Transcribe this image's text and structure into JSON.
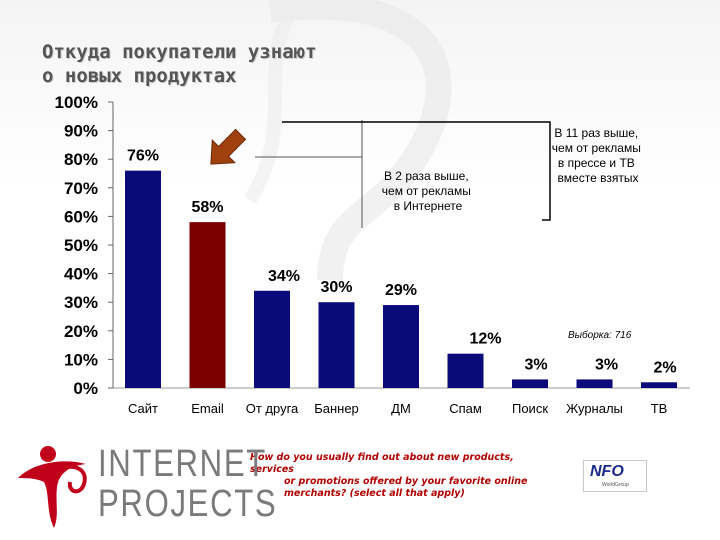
{
  "title_lines": [
    "Откуда покупатели узнают",
    "о новых продуктах"
  ],
  "chart_data": {
    "type": "bar",
    "categories": [
      "Сайт",
      "Email",
      "От друга",
      "Баннер",
      "ДМ",
      "Спам",
      "Поиск",
      "Журналы",
      "ТВ"
    ],
    "values": [
      76,
      58,
      34,
      30,
      29,
      12,
      3,
      3,
      2
    ],
    "data_labels": [
      "76%",
      "58%",
      "34%",
      "30%",
      "29%",
      "12%",
      "3%",
      "3%",
      "2%"
    ],
    "bar_colors": [
      "#0a0a7a",
      "#7a0000",
      "#0a0a7a",
      "#0a0a7a",
      "#0a0a7a",
      "#0a0a7a",
      "#0a0a7a",
      "#0a0a7a",
      "#0a0a7a"
    ],
    "ylim": [
      0,
      100
    ],
    "y_ticks": [
      "0%",
      "10%",
      "20%",
      "30%",
      "40%",
      "50%",
      "60%",
      "70%",
      "80%",
      "90%",
      "100%"
    ],
    "annotations": [
      {
        "lines": [
          "В 2 раза выше,",
          "чем от рекламы",
          "в Интернете"
        ]
      },
      {
        "lines": [
          "В 11 раз выше,",
          "чем от рекламы",
          "в прессе и ТВ",
          "вместе взятых"
        ]
      }
    ],
    "sample_note": "Выборка: 716"
  },
  "question_lines": [
    "How do you usually find out about new products, services",
    "or promotions offered by your favorite online",
    "merchants? (select all that apply)"
  ],
  "logos": {
    "internet_projects": [
      "INTERNET",
      "PROJECTS"
    ],
    "nfo": "NFO",
    "nfo_small": "WorldGroup"
  },
  "colors": {
    "bar_primary": "#0a0a7a",
    "bar_highlight": "#7a0000",
    "arrow": "#a0400e",
    "question": "#b00000"
  }
}
